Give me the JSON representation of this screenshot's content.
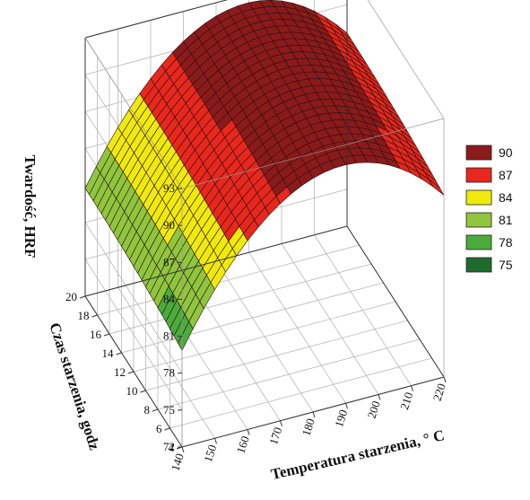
{
  "chart_data": {
    "type": "surface3d",
    "zlabel": "Twardość, HRF",
    "xlabel": "Temperatura starzenia, ° C",
    "ylabel": "Czas starzenia, godz",
    "x_ticks": [
      140,
      150,
      160,
      170,
      180,
      190,
      200,
      210,
      220
    ],
    "y_ticks": [
      4,
      6,
      8,
      10,
      12,
      14,
      16,
      18,
      20
    ],
    "z_ticks": [
      72,
      75,
      78,
      81,
      84,
      87,
      90,
      93
    ],
    "xlim": [
      140,
      220
    ],
    "ylim": [
      4,
      20
    ],
    "zlim": [
      72,
      93
    ],
    "grid": true,
    "legend_position": "right",
    "legend": [
      {
        "label": "90",
        "color": "#8b1a1a"
      },
      {
        "label": "87",
        "color": "#e8271d"
      },
      {
        "label": "84",
        "color": "#f0ea0c"
      },
      {
        "label": "81",
        "color": "#8fc63e"
      },
      {
        "label": "78",
        "color": "#4aac3c"
      },
      {
        "label": "75",
        "color": "#1f6b2e"
      }
    ],
    "surface_model": {
      "description": "quadratic response surface",
      "x_peak": 189,
      "y_peak": 20,
      "z_peak": 92.3,
      "x_curvature": 0.0048,
      "y_curvature": 0.0036
    }
  }
}
